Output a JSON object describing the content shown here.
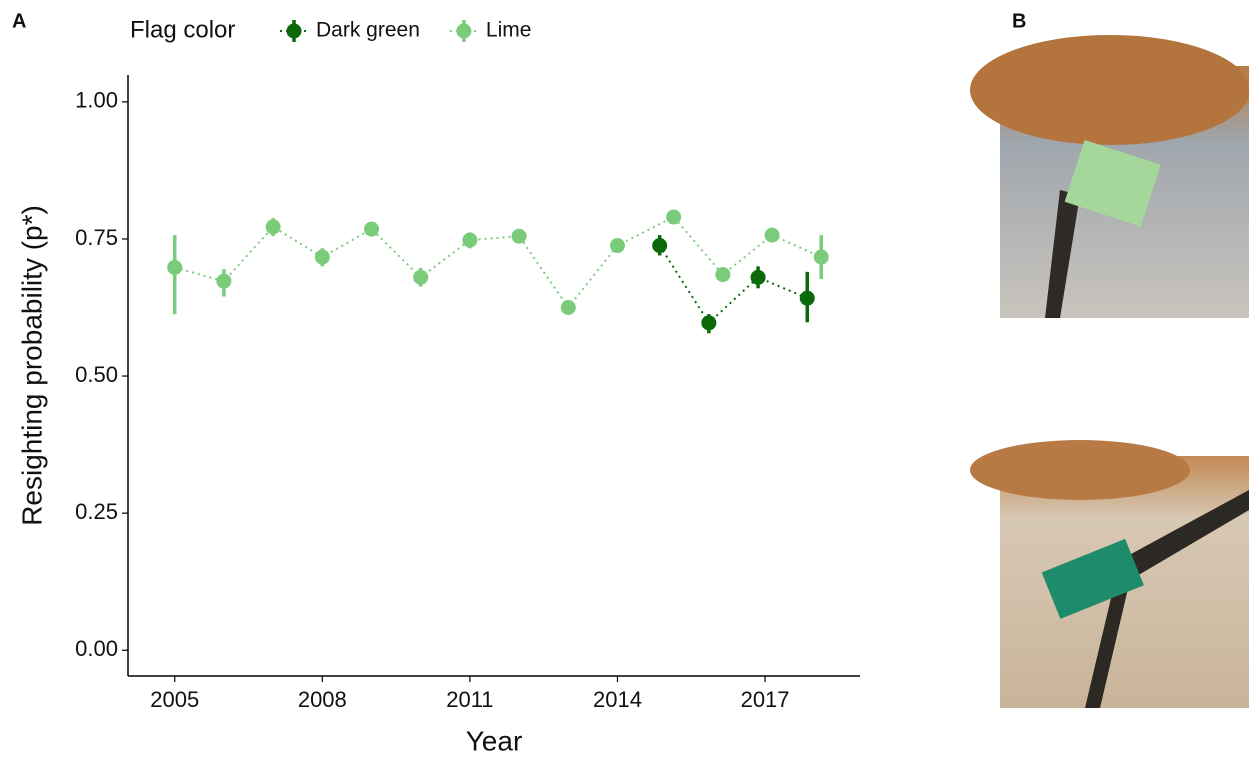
{
  "chart_data": {
    "type": "errorbar",
    "panel_labels": [
      "A",
      "B"
    ],
    "legend_title": "Flag color",
    "xlabel": "Year",
    "ylabel": "Resighting probability (p*)",
    "xlim": [
      2004.05,
      2018.93
    ],
    "xticks": [
      2005,
      2008,
      2011,
      2014,
      2017
    ],
    "ylim": [
      -0.047,
      1.049
    ],
    "yticks": [
      {
        "value": 0,
        "label": "0.00"
      },
      {
        "value": 0.25,
        "label": "0.25"
      },
      {
        "value": 0.5,
        "label": "0.50"
      },
      {
        "value": 0.75,
        "label": "0.75"
      },
      {
        "value": 1,
        "label": "1.00"
      }
    ],
    "series": [
      {
        "name": "Dark green",
        "color": "#0a6a0a",
        "x": [
          2015,
          2016,
          2017,
          2018
        ],
        "values": [
          0.738,
          0.597,
          0.68,
          0.642
        ],
        "lower": [
          0.72,
          0.578,
          0.66,
          0.598
        ],
        "upper": [
          0.757,
          0.613,
          0.7,
          0.69
        ]
      },
      {
        "name": "Lime",
        "color": "#7acc7a",
        "x": [
          2005,
          2006,
          2007,
          2008,
          2009,
          2010,
          2011,
          2012,
          2013,
          2014,
          2015,
          2016,
          2017,
          2018
        ],
        "values": [
          0.698,
          0.673,
          0.772,
          0.717,
          0.768,
          0.68,
          0.748,
          0.755,
          0.625,
          0.738,
          0.79,
          0.685,
          0.757,
          0.717
        ],
        "lower": [
          0.613,
          0.645,
          0.755,
          0.7,
          0.757,
          0.663,
          0.733,
          0.745,
          0.615,
          0.727,
          0.78,
          0.678,
          0.748,
          0.677
        ],
        "upper": [
          0.757,
          0.695,
          0.788,
          0.733,
          0.78,
          0.697,
          0.762,
          0.765,
          0.637,
          0.748,
          0.798,
          0.693,
          0.765,
          0.757
        ]
      }
    ]
  }
}
